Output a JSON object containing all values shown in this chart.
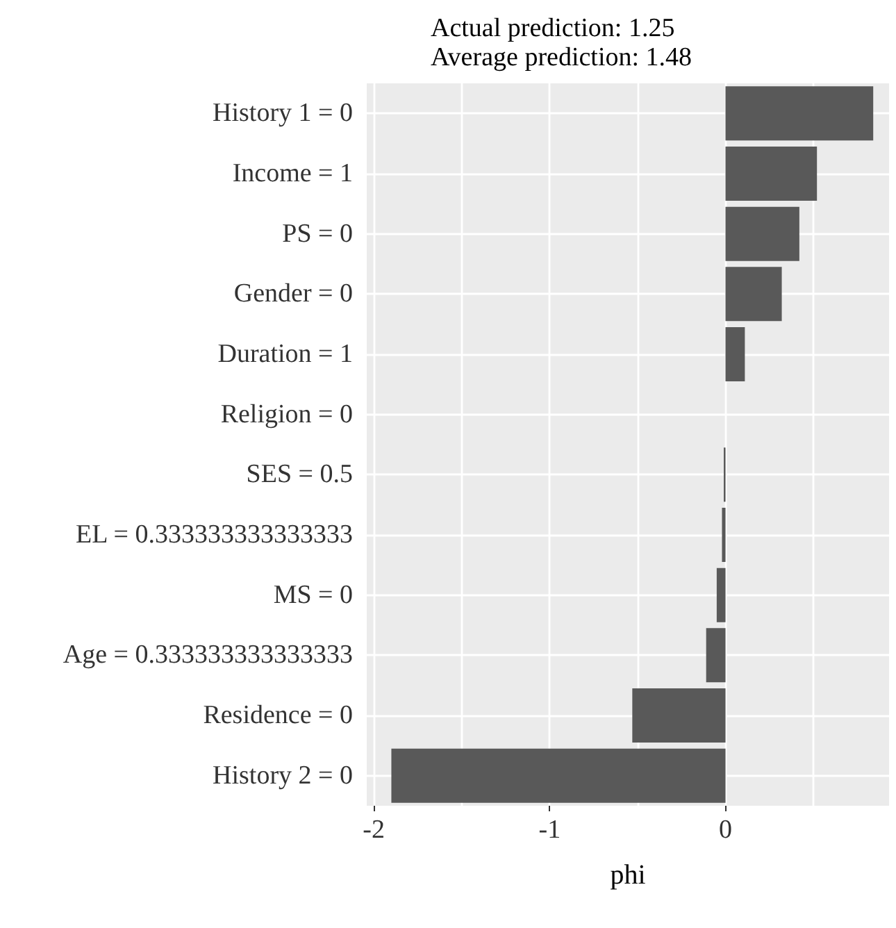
{
  "chart_data": {
    "type": "bar",
    "orientation": "horizontal",
    "title": "Actual prediction: 1.25",
    "subtitle": "Average prediction: 1.48",
    "xlabel": "phi",
    "categories": [
      "History 1 = 0",
      "Income = 1",
      "PS = 0",
      "Gender = 0",
      "Duration = 1",
      "Religion = 0",
      "SES = 0.5",
      "EL = 0.333333333333333",
      "MS = 0",
      "Age = 0.333333333333333",
      "Residence = 0",
      "History 2 = 0"
    ],
    "values": [
      0.84,
      0.52,
      0.42,
      0.32,
      0.11,
      0,
      -0.01,
      -0.02,
      -0.05,
      -0.11,
      -0.53,
      -1.9
    ],
    "color": "#595959",
    "xlim": [
      -2.04,
      0.93
    ],
    "xticks": [
      -2,
      {
        "value": -1.5,
        "label": null
      },
      -1,
      {
        "value": -0.5,
        "label": null
      },
      0,
      {
        "value": 0.5,
        "label": null
      }
    ],
    "grid": true
  }
}
